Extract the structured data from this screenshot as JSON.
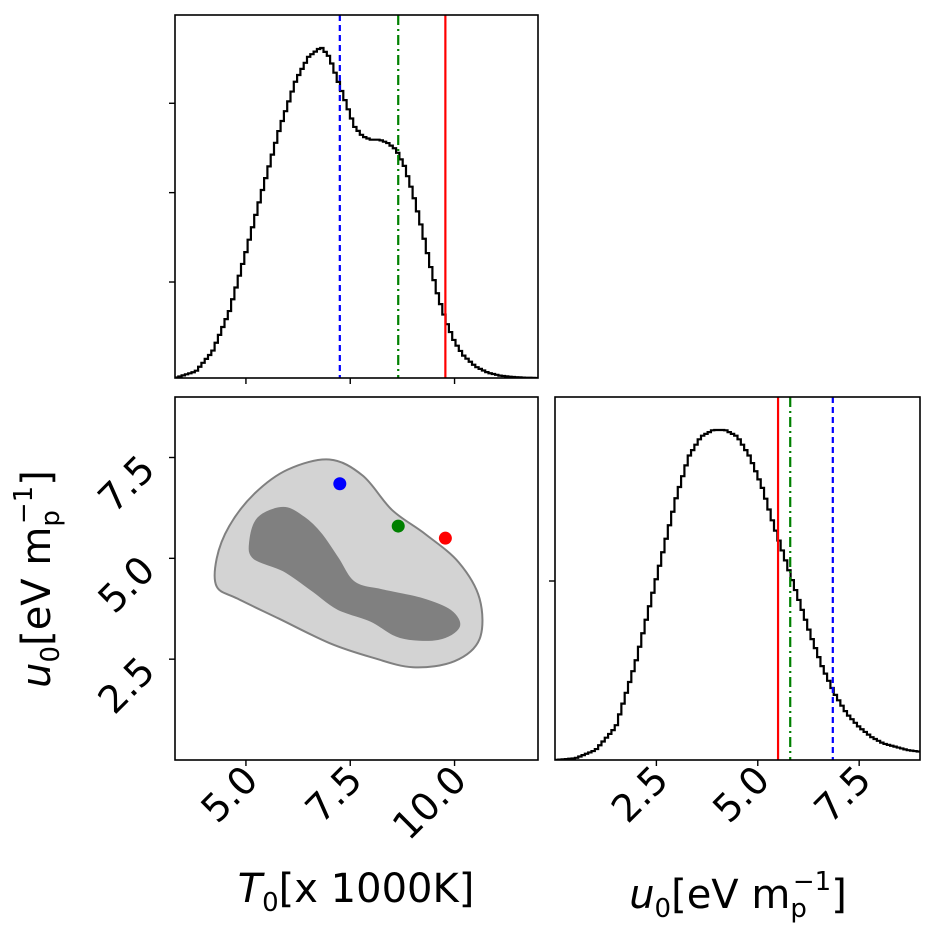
{
  "chart_data": {
    "type": "corner",
    "parameters": [
      {
        "name": "T0",
        "label_main": "T",
        "label_sub": "0",
        "label_rest": "[x 1000K]",
        "range": [
          3.3,
          12.0
        ],
        "ticks": [
          5.0,
          7.5,
          10.0
        ],
        "tick_labels": [
          "5.0",
          "7.5",
          "10.0"
        ]
      },
      {
        "name": "u0",
        "label_main": "u",
        "label_sub": "0",
        "label_rest": "[eV m",
        "label_unit_sub": "p",
        "label_unit_sup": "−1",
        "label_close": "]",
        "range": [
          0.0,
          9.0
        ],
        "ticks": [
          2.5,
          5.0,
          7.5
        ],
        "tick_labels": [
          "2.5",
          "5.0",
          "7.5"
        ]
      }
    ],
    "marginal_T0": {
      "type": "step-histogram",
      "x": [
        3.3,
        3.8,
        4.2,
        4.6,
        5.0,
        5.4,
        5.8,
        6.2,
        6.5,
        6.8,
        7.0,
        7.2,
        7.4,
        7.6,
        7.8,
        8.0,
        8.2,
        8.4,
        8.6,
        8.8,
        9.0,
        9.2,
        9.4,
        9.6,
        9.8,
        10.0,
        10.2,
        10.5,
        10.8,
        11.1,
        11.4,
        11.7,
        12.0
      ],
      "density": [
        0.0,
        0.02,
        0.08,
        0.2,
        0.38,
        0.57,
        0.75,
        0.9,
        0.97,
        1.0,
        0.97,
        0.9,
        0.83,
        0.76,
        0.73,
        0.72,
        0.72,
        0.71,
        0.69,
        0.64,
        0.56,
        0.46,
        0.35,
        0.25,
        0.17,
        0.11,
        0.07,
        0.035,
        0.016,
        0.007,
        0.003,
        0.001,
        0.0
      ]
    },
    "marginal_u0": {
      "type": "step-histogram",
      "x": [
        0.0,
        0.5,
        1.0,
        1.5,
        2.0,
        2.5,
        3.0,
        3.3,
        3.6,
        3.9,
        4.2,
        4.5,
        4.8,
        5.1,
        5.4,
        5.7,
        6.0,
        6.3,
        6.6,
        6.9,
        7.2,
        7.5,
        7.8,
        8.1,
        8.4,
        8.7,
        9.0
      ],
      "density": [
        0.0,
        0.005,
        0.03,
        0.1,
        0.3,
        0.55,
        0.8,
        0.92,
        0.98,
        1.0,
        1.0,
        0.98,
        0.92,
        0.83,
        0.71,
        0.6,
        0.49,
        0.38,
        0.28,
        0.2,
        0.14,
        0.1,
        0.07,
        0.05,
        0.04,
        0.03,
        0.025
      ]
    },
    "contours_2d": [
      {
        "level": "outer",
        "fill": "#d3d3d3",
        "edge": "#808080",
        "points": [
          [
            4.3,
            4.3
          ],
          [
            4.3,
            5.0
          ],
          [
            4.6,
            5.8
          ],
          [
            5.2,
            6.6
          ],
          [
            6.0,
            7.2
          ],
          [
            7.0,
            7.45
          ],
          [
            7.8,
            7.05
          ],
          [
            8.5,
            6.2
          ],
          [
            9.3,
            5.6
          ],
          [
            10.1,
            4.9
          ],
          [
            10.6,
            4.0
          ],
          [
            10.6,
            3.0
          ],
          [
            10.0,
            2.45
          ],
          [
            9.0,
            2.3
          ],
          [
            8.0,
            2.55
          ],
          [
            7.0,
            2.9
          ],
          [
            5.8,
            3.5
          ],
          [
            4.8,
            4.0
          ]
        ]
      },
      {
        "level": "inner",
        "fill": "#808080",
        "edge": "#808080",
        "points": [
          [
            5.1,
            5.4
          ],
          [
            5.3,
            6.0
          ],
          [
            5.9,
            6.25
          ],
          [
            6.4,
            6.0
          ],
          [
            6.8,
            5.6
          ],
          [
            7.2,
            5.0
          ],
          [
            7.6,
            4.4
          ],
          [
            8.3,
            4.2
          ],
          [
            9.2,
            4.0
          ],
          [
            9.9,
            3.7
          ],
          [
            10.1,
            3.3
          ],
          [
            9.6,
            3.0
          ],
          [
            8.7,
            3.05
          ],
          [
            8.0,
            3.45
          ],
          [
            7.2,
            3.75
          ],
          [
            6.6,
            4.2
          ],
          [
            5.9,
            4.7
          ],
          [
            5.2,
            5.0
          ]
        ]
      }
    ],
    "reference_points": [
      {
        "name": "blue",
        "color": "#0000ff",
        "style": "dashed",
        "T0": 7.25,
        "u0": 6.85
      },
      {
        "name": "green",
        "color": "#008000",
        "style": "dashdot",
        "T0": 8.65,
        "u0": 5.8
      },
      {
        "name": "red",
        "color": "#ff0000",
        "style": "solid",
        "T0": 9.78,
        "u0": 5.5
      }
    ]
  }
}
